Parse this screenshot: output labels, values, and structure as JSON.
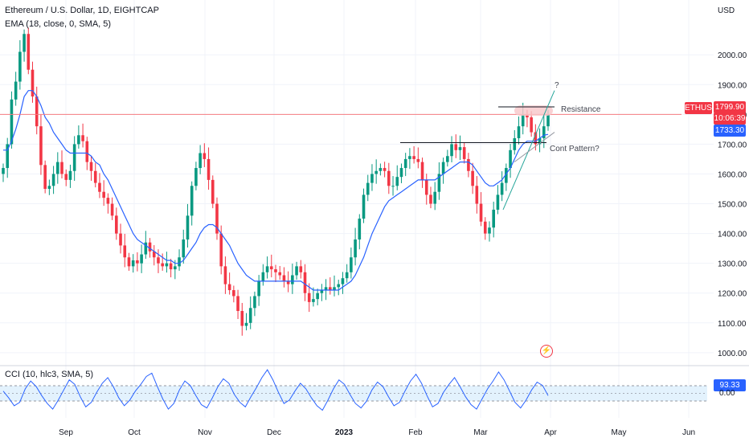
{
  "header": {
    "title": "Ethereum / U.S. Dollar, 1D, EIGHTCAP",
    "ema_label": "EMA (18, close, 0, SMA, 5)",
    "currency": "USD"
  },
  "colors": {
    "up": "#089981",
    "down": "#f23645",
    "ema": "#2962ff",
    "resistance_line": "#f77c80",
    "resistance_zone": "#f7c7c9",
    "cci_band": "#e3f2fd",
    "cci_line": "#2962ff",
    "tag_red": "#f23645",
    "tag_blue": "#2962ff"
  },
  "price_tags": {
    "symbol": "ETHUSD",
    "last_price": "1799.90",
    "countdown": "10:06:39",
    "ema_value": "1733.30"
  },
  "annotations": {
    "resistance": "Resistance",
    "pattern": "Cont Pattern?",
    "question": "?"
  },
  "cci": {
    "label": "CCI (10, hlc3, SMA, 5)",
    "value": "93.33",
    "zero_label": "0.00",
    "series": [
      20,
      -40,
      -110,
      -80,
      40,
      110,
      60,
      -20,
      -90,
      -140,
      -60,
      30,
      120,
      80,
      -30,
      -120,
      -80,
      10,
      90,
      140,
      60,
      -40,
      -110,
      -60,
      20,
      80,
      150,
      180,
      60,
      -50,
      -140,
      -90,
      30,
      110,
      70,
      -20,
      -100,
      -130,
      -40,
      60,
      130,
      90,
      -10,
      -80,
      -120,
      -30,
      50,
      140,
      210,
      120,
      10,
      -90,
      -60,
      20,
      90,
      40,
      -40,
      -110,
      -150,
      -60,
      40,
      120,
      80,
      -10,
      -90,
      -130,
      -70,
      30,
      100,
      60,
      -30,
      -110,
      -80,
      20,
      110,
      170,
      90,
      -20,
      -120,
      -90,
      10,
      80,
      140,
      60,
      -30,
      -100,
      -140,
      -50,
      40,
      110,
      190,
      120,
      20,
      -80,
      -130,
      -60,
      30,
      100,
      70,
      -20
    ]
  },
  "chart_data": {
    "type": "candlestick",
    "title": "Ethereum / U.S. Dollar, 1D, EIGHTCAP",
    "currency": "USD",
    "ylim": [
      970,
      2130
    ],
    "y_ticks": [
      1000,
      1100,
      1200,
      1300,
      1400,
      1500,
      1600,
      1700,
      1800,
      1900,
      2000
    ],
    "x_ticks": [
      "Sep",
      "Oct",
      "Nov",
      "Dec",
      "2023",
      "Feb",
      "Mar",
      "Apr",
      "May",
      "Jun"
    ],
    "resistance_level": 1799.9,
    "consolidation_level": 1705,
    "close": [
      1620,
      1700,
      1850,
      1910,
      2010,
      2070,
      1950,
      1860,
      1760,
      1630,
      1550,
      1560,
      1600,
      1640,
      1600,
      1580,
      1610,
      1700,
      1730,
      1710,
      1640,
      1610,
      1570,
      1540,
      1520,
      1500,
      1460,
      1400,
      1360,
      1320,
      1290,
      1310,
      1300,
      1330,
      1370,
      1340,
      1320,
      1300,
      1290,
      1300,
      1280,
      1290,
      1320,
      1380,
      1460,
      1560,
      1620,
      1670,
      1650,
      1580,
      1500,
      1400,
      1290,
      1230,
      1210,
      1190,
      1140,
      1090,
      1100,
      1150,
      1190,
      1240,
      1270,
      1290,
      1280,
      1270,
      1260,
      1240,
      1230,
      1260,
      1290,
      1270,
      1200,
      1170,
      1180,
      1200,
      1210,
      1220,
      1210,
      1220,
      1230,
      1250,
      1270,
      1320,
      1380,
      1450,
      1530,
      1570,
      1600,
      1610,
      1620,
      1610,
      1560,
      1560,
      1590,
      1620,
      1650,
      1660,
      1650,
      1640,
      1580,
      1530,
      1500,
      1540,
      1600,
      1640,
      1660,
      1700,
      1680,
      1690,
      1650,
      1610,
      1560,
      1500,
      1440,
      1400,
      1420,
      1480,
      1530,
      1570,
      1620,
      1680,
      1720,
      1760,
      1800,
      1790,
      1740,
      1700,
      1720,
      1760,
      1800
    ],
    "ema": [
      1680,
      1680,
      1710,
      1750,
      1800,
      1860,
      1880,
      1880,
      1860,
      1830,
      1790,
      1770,
      1740,
      1720,
      1700,
      1680,
      1670,
      1670,
      1670,
      1670,
      1670,
      1660,
      1640,
      1630,
      1600,
      1580,
      1550,
      1520,
      1490,
      1460,
      1430,
      1400,
      1380,
      1370,
      1360,
      1350,
      1340,
      1330,
      1320,
      1310,
      1310,
      1300,
      1300,
      1310,
      1330,
      1350,
      1370,
      1400,
      1420,
      1430,
      1430,
      1420,
      1400,
      1380,
      1360,
      1330,
      1300,
      1280,
      1260,
      1250,
      1240,
      1240,
      1240,
      1240,
      1240,
      1240,
      1240,
      1240,
      1240,
      1240,
      1240,
      1240,
      1230,
      1220,
      1210,
      1210,
      1210,
      1210,
      1210,
      1210,
      1210,
      1220,
      1230,
      1240,
      1260,
      1290,
      1320,
      1360,
      1400,
      1430,
      1460,
      1490,
      1510,
      1520,
      1530,
      1540,
      1550,
      1560,
      1570,
      1580,
      1580,
      1580,
      1580,
      1580,
      1590,
      1600,
      1610,
      1620,
      1630,
      1640,
      1640,
      1640,
      1630,
      1610,
      1590,
      1570,
      1560,
      1560,
      1570,
      1580,
      1600,
      1620,
      1650,
      1680,
      1700,
      1710,
      1710,
      1710,
      1720,
      1730,
      1733
    ]
  }
}
